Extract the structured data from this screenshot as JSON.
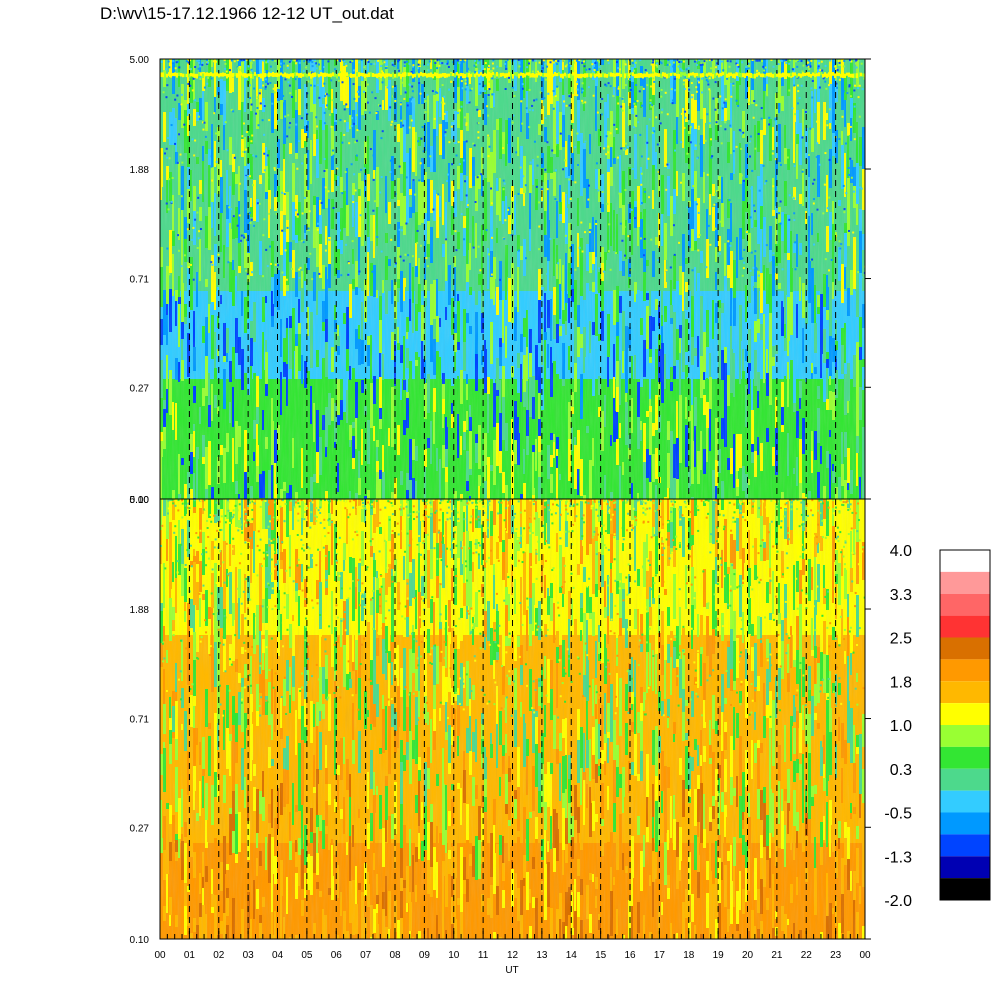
{
  "title": "D:\\wv\\15-17.12.1966  12-12 UT_out.dat",
  "chart_data": [
    {
      "type": "heatmap",
      "panel": "upper",
      "xlabel": "",
      "ylabel": "",
      "ylim": [
        0.1,
        5.0
      ],
      "yscale": "log",
      "ytick_labels": [
        "0.10",
        "0.27",
        "0.71",
        "1.88",
        "5.00"
      ],
      "yticks": [
        0.1,
        0.27,
        0.71,
        1.88,
        5.0
      ],
      "xlim": [
        0,
        24
      ],
      "x_dashed_gridlines_hours": [
        1,
        2,
        3,
        4,
        5,
        6,
        7,
        8,
        9,
        10,
        11,
        12,
        13,
        14,
        15,
        16,
        17,
        18,
        19,
        20,
        21,
        22,
        23
      ],
      "dominant_level_by_height": [
        {
          "y_range": [
            0.1,
            0.27
          ],
          "level": 0.3
        },
        {
          "y_range": [
            0.27,
            0.71
          ],
          "level": -0.3
        },
        {
          "y_range": [
            0.71,
            1.88
          ],
          "level": 0.3
        },
        {
          "y_range": [
            1.88,
            5.0
          ],
          "level": 0.0
        }
      ]
    },
    {
      "type": "heatmap",
      "panel": "lower",
      "xlabel": "UT",
      "ylabel": "",
      "ylim": [
        0.1,
        5.0
      ],
      "yscale": "log",
      "ytick_labels": [
        "0.10",
        "0.27",
        "0.71",
        "1.88",
        "5.00"
      ],
      "yticks": [
        0.1,
        0.27,
        0.71,
        1.88,
        5.0
      ],
      "xlim": [
        0,
        24
      ],
      "xtick_labels": [
        "00",
        "01",
        "02",
        "03",
        "04",
        "05",
        "06",
        "07",
        "08",
        "09",
        "10",
        "11",
        "12",
        "13",
        "14",
        "15",
        "16",
        "17",
        "18",
        "19",
        "20",
        "21",
        "22",
        "23",
        "00"
      ],
      "x_dashed_gridlines_hours": [
        1,
        2,
        3,
        4,
        5,
        6,
        7,
        8,
        9,
        10,
        11,
        12,
        13,
        14,
        15,
        16,
        17,
        18,
        19,
        20,
        21,
        22,
        23
      ],
      "dominant_level_by_height": [
        {
          "y_range": [
            0.1,
            0.27
          ],
          "level": 1.8
        },
        {
          "y_range": [
            0.27,
            0.71
          ],
          "level": 1.0
        },
        {
          "y_range": [
            0.71,
            1.88
          ],
          "level": 1.5
        },
        {
          "y_range": [
            1.88,
            5.0
          ],
          "level": 1.2
        }
      ]
    }
  ],
  "colorbar": {
    "labels": [
      "4.0",
      "3.3",
      "2.5",
      "1.8",
      "1.0",
      "0.3",
      "-0.5",
      "-1.3",
      "-2.0"
    ],
    "colors": [
      "#ffffff",
      "#ff9999",
      "#ff6666",
      "#ff3333",
      "#d97000",
      "#ff9900",
      "#ffb800",
      "#ffff00",
      "#99ff33",
      "#33e633",
      "#4dd98c",
      "#33ccff",
      "#0099ff",
      "#0044ff",
      "#0000b3",
      "#000000"
    ]
  }
}
